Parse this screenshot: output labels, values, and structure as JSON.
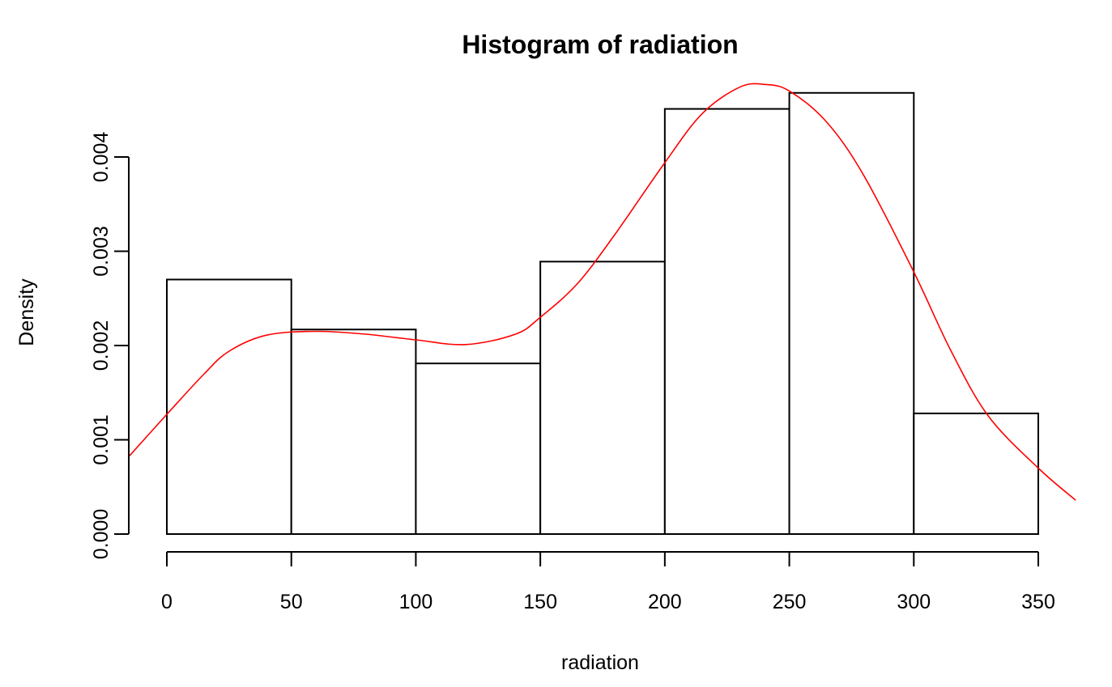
{
  "chart_data": {
    "type": "bar",
    "subtype": "histogram",
    "title": "Histogram of radiation",
    "xlabel": "radiation",
    "ylabel": "Density",
    "bins": [
      {
        "from": 0,
        "to": 50,
        "density": 0.0027
      },
      {
        "from": 50,
        "to": 100,
        "density": 0.00217
      },
      {
        "from": 100,
        "to": 150,
        "density": 0.00181
      },
      {
        "from": 150,
        "to": 200,
        "density": 0.00289
      },
      {
        "from": 200,
        "to": 250,
        "density": 0.00451
      },
      {
        "from": 250,
        "to": 300,
        "density": 0.00468
      },
      {
        "from": 300,
        "to": 350,
        "density": 0.00128
      }
    ],
    "xticks": [
      0,
      50,
      100,
      150,
      200,
      250,
      300,
      350
    ],
    "xtick_labels": [
      "0",
      "50",
      "100",
      "150",
      "200",
      "250",
      "300",
      "350"
    ],
    "yticks": [
      0,
      0.001,
      0.002,
      0.003,
      0.004
    ],
    "ytick_labels": [
      "0.000",
      "0.001",
      "0.002",
      "0.003",
      "0.004"
    ],
    "xlim": [
      -15,
      365
    ],
    "ylim": [
      0,
      0.0048
    ],
    "grid": false,
    "density_curve": {
      "color": "#ff0000",
      "x": [
        -15,
        0,
        15,
        25,
        40,
        60,
        80,
        100,
        120,
        140,
        150,
        165,
        180,
        200,
        215,
        230,
        240,
        250,
        265,
        280,
        300,
        315,
        330,
        350,
        365
      ],
      "y": [
        0.00083,
        0.00127,
        0.0017,
        0.00194,
        0.00211,
        0.00215,
        0.00212,
        0.00206,
        0.00201,
        0.00212,
        0.0023,
        0.00266,
        0.00318,
        0.00394,
        0.00446,
        0.00474,
        0.00477,
        0.0047,
        0.00437,
        0.0038,
        0.00278,
        0.00194,
        0.00125,
        0.0007,
        0.00036
      ]
    }
  }
}
